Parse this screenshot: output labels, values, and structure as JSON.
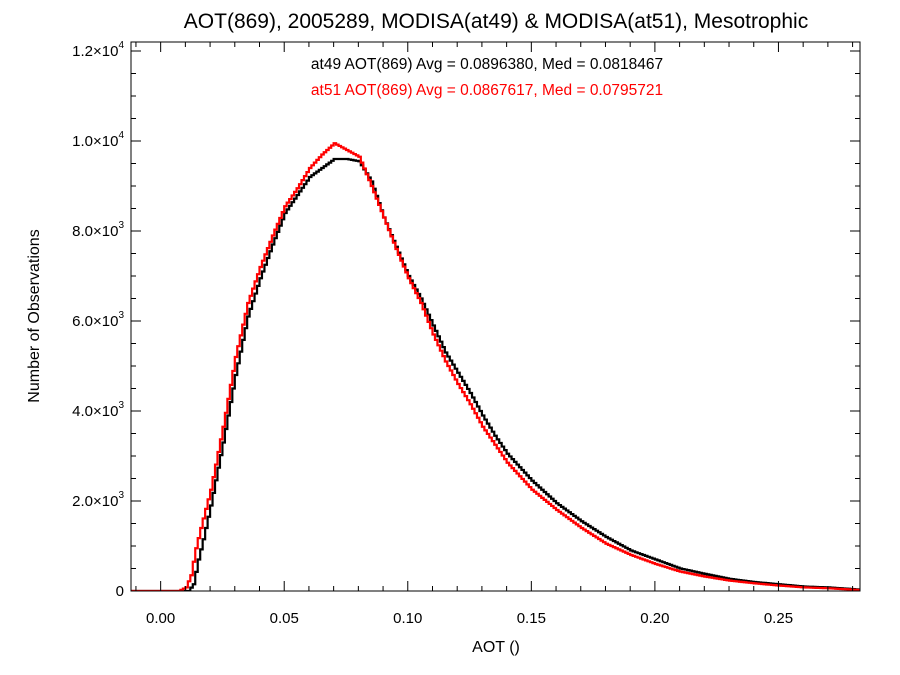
{
  "chart_data": {
    "type": "histogram-step",
    "title": "AOT(869), 2005289, MODISA(at49) & MODISA(at51), Mesotrophic",
    "xlabel": "AOT ()",
    "ylabel": "Number of Observations",
    "xlim": [
      -0.012,
      0.283
    ],
    "ylim": [
      0,
      12200
    ],
    "x_ticks": [
      0.0,
      0.05,
      0.1,
      0.15,
      0.2,
      0.25
    ],
    "x_tick_labels": [
      "0.00",
      "0.05",
      "0.10",
      "0.15",
      "0.20",
      "0.25"
    ],
    "y_ticks": [
      0,
      2000,
      4000,
      6000,
      8000,
      10000,
      12000
    ],
    "y_tick_labels": [
      {
        "mantissa": "0",
        "exp": ""
      },
      {
        "mantissa": "2.0×10",
        "exp": "3"
      },
      {
        "mantissa": "4.0×10",
        "exp": "3"
      },
      {
        "mantissa": "6.0×10",
        "exp": "3"
      },
      {
        "mantissa": "8.0×10",
        "exp": "3"
      },
      {
        "mantissa": "1.0×10",
        "exp": "4"
      },
      {
        "mantissa": "1.2×10",
        "exp": "4"
      }
    ],
    "bin_width": 0.001,
    "series": [
      {
        "name": "at49",
        "color": "#000000",
        "stats_label": "at49 AOT(869) Avg = 0.0896380, Med = 0.0818467",
        "x": [
          -0.012,
          0.008,
          0.011,
          0.013,
          0.015,
          0.017,
          0.02,
          0.025,
          0.03,
          0.035,
          0.04,
          0.045,
          0.05,
          0.055,
          0.06,
          0.065,
          0.07,
          0.075,
          0.08,
          0.085,
          0.09,
          0.095,
          0.1,
          0.105,
          0.11,
          0.115,
          0.12,
          0.125,
          0.13,
          0.135,
          0.14,
          0.15,
          0.16,
          0.17,
          0.18,
          0.19,
          0.2,
          0.21,
          0.22,
          0.23,
          0.24,
          0.25,
          0.26,
          0.27,
          0.283
        ],
        "values": [
          0,
          0,
          0,
          150,
          700,
          1150,
          1900,
          3300,
          4800,
          6100,
          6950,
          7700,
          8400,
          8800,
          9200,
          9400,
          9600,
          9600,
          9550,
          9100,
          8300,
          7650,
          7000,
          6500,
          5900,
          5300,
          4850,
          4400,
          3900,
          3450,
          3050,
          2450,
          1950,
          1550,
          1200,
          900,
          700,
          500,
          380,
          270,
          200,
          150,
          100,
          80,
          30
        ]
      },
      {
        "name": "at51",
        "color": "#ff0000",
        "stats_label": "at51 AOT(869) Avg = 0.0867617, Med = 0.0795721",
        "x": [
          -0.012,
          0.007,
          0.01,
          0.012,
          0.014,
          0.016,
          0.02,
          0.025,
          0.03,
          0.035,
          0.04,
          0.045,
          0.05,
          0.055,
          0.06,
          0.065,
          0.07,
          0.075,
          0.08,
          0.085,
          0.09,
          0.095,
          0.1,
          0.105,
          0.11,
          0.115,
          0.12,
          0.125,
          0.13,
          0.135,
          0.14,
          0.15,
          0.16,
          0.17,
          0.18,
          0.19,
          0.2,
          0.21,
          0.22,
          0.23,
          0.24,
          0.25,
          0.26,
          0.27,
          0.283
        ],
        "values": [
          0,
          0,
          80,
          350,
          950,
          1400,
          2250,
          3650,
          5200,
          6400,
          7200,
          7900,
          8550,
          8950,
          9400,
          9700,
          9950,
          9800,
          9650,
          9000,
          8300,
          7600,
          6950,
          6400,
          5700,
          5100,
          4600,
          4150,
          3650,
          3250,
          2850,
          2250,
          1800,
          1400,
          1050,
          800,
          600,
          430,
          320,
          230,
          170,
          120,
          80,
          60,
          20
        ]
      }
    ]
  }
}
